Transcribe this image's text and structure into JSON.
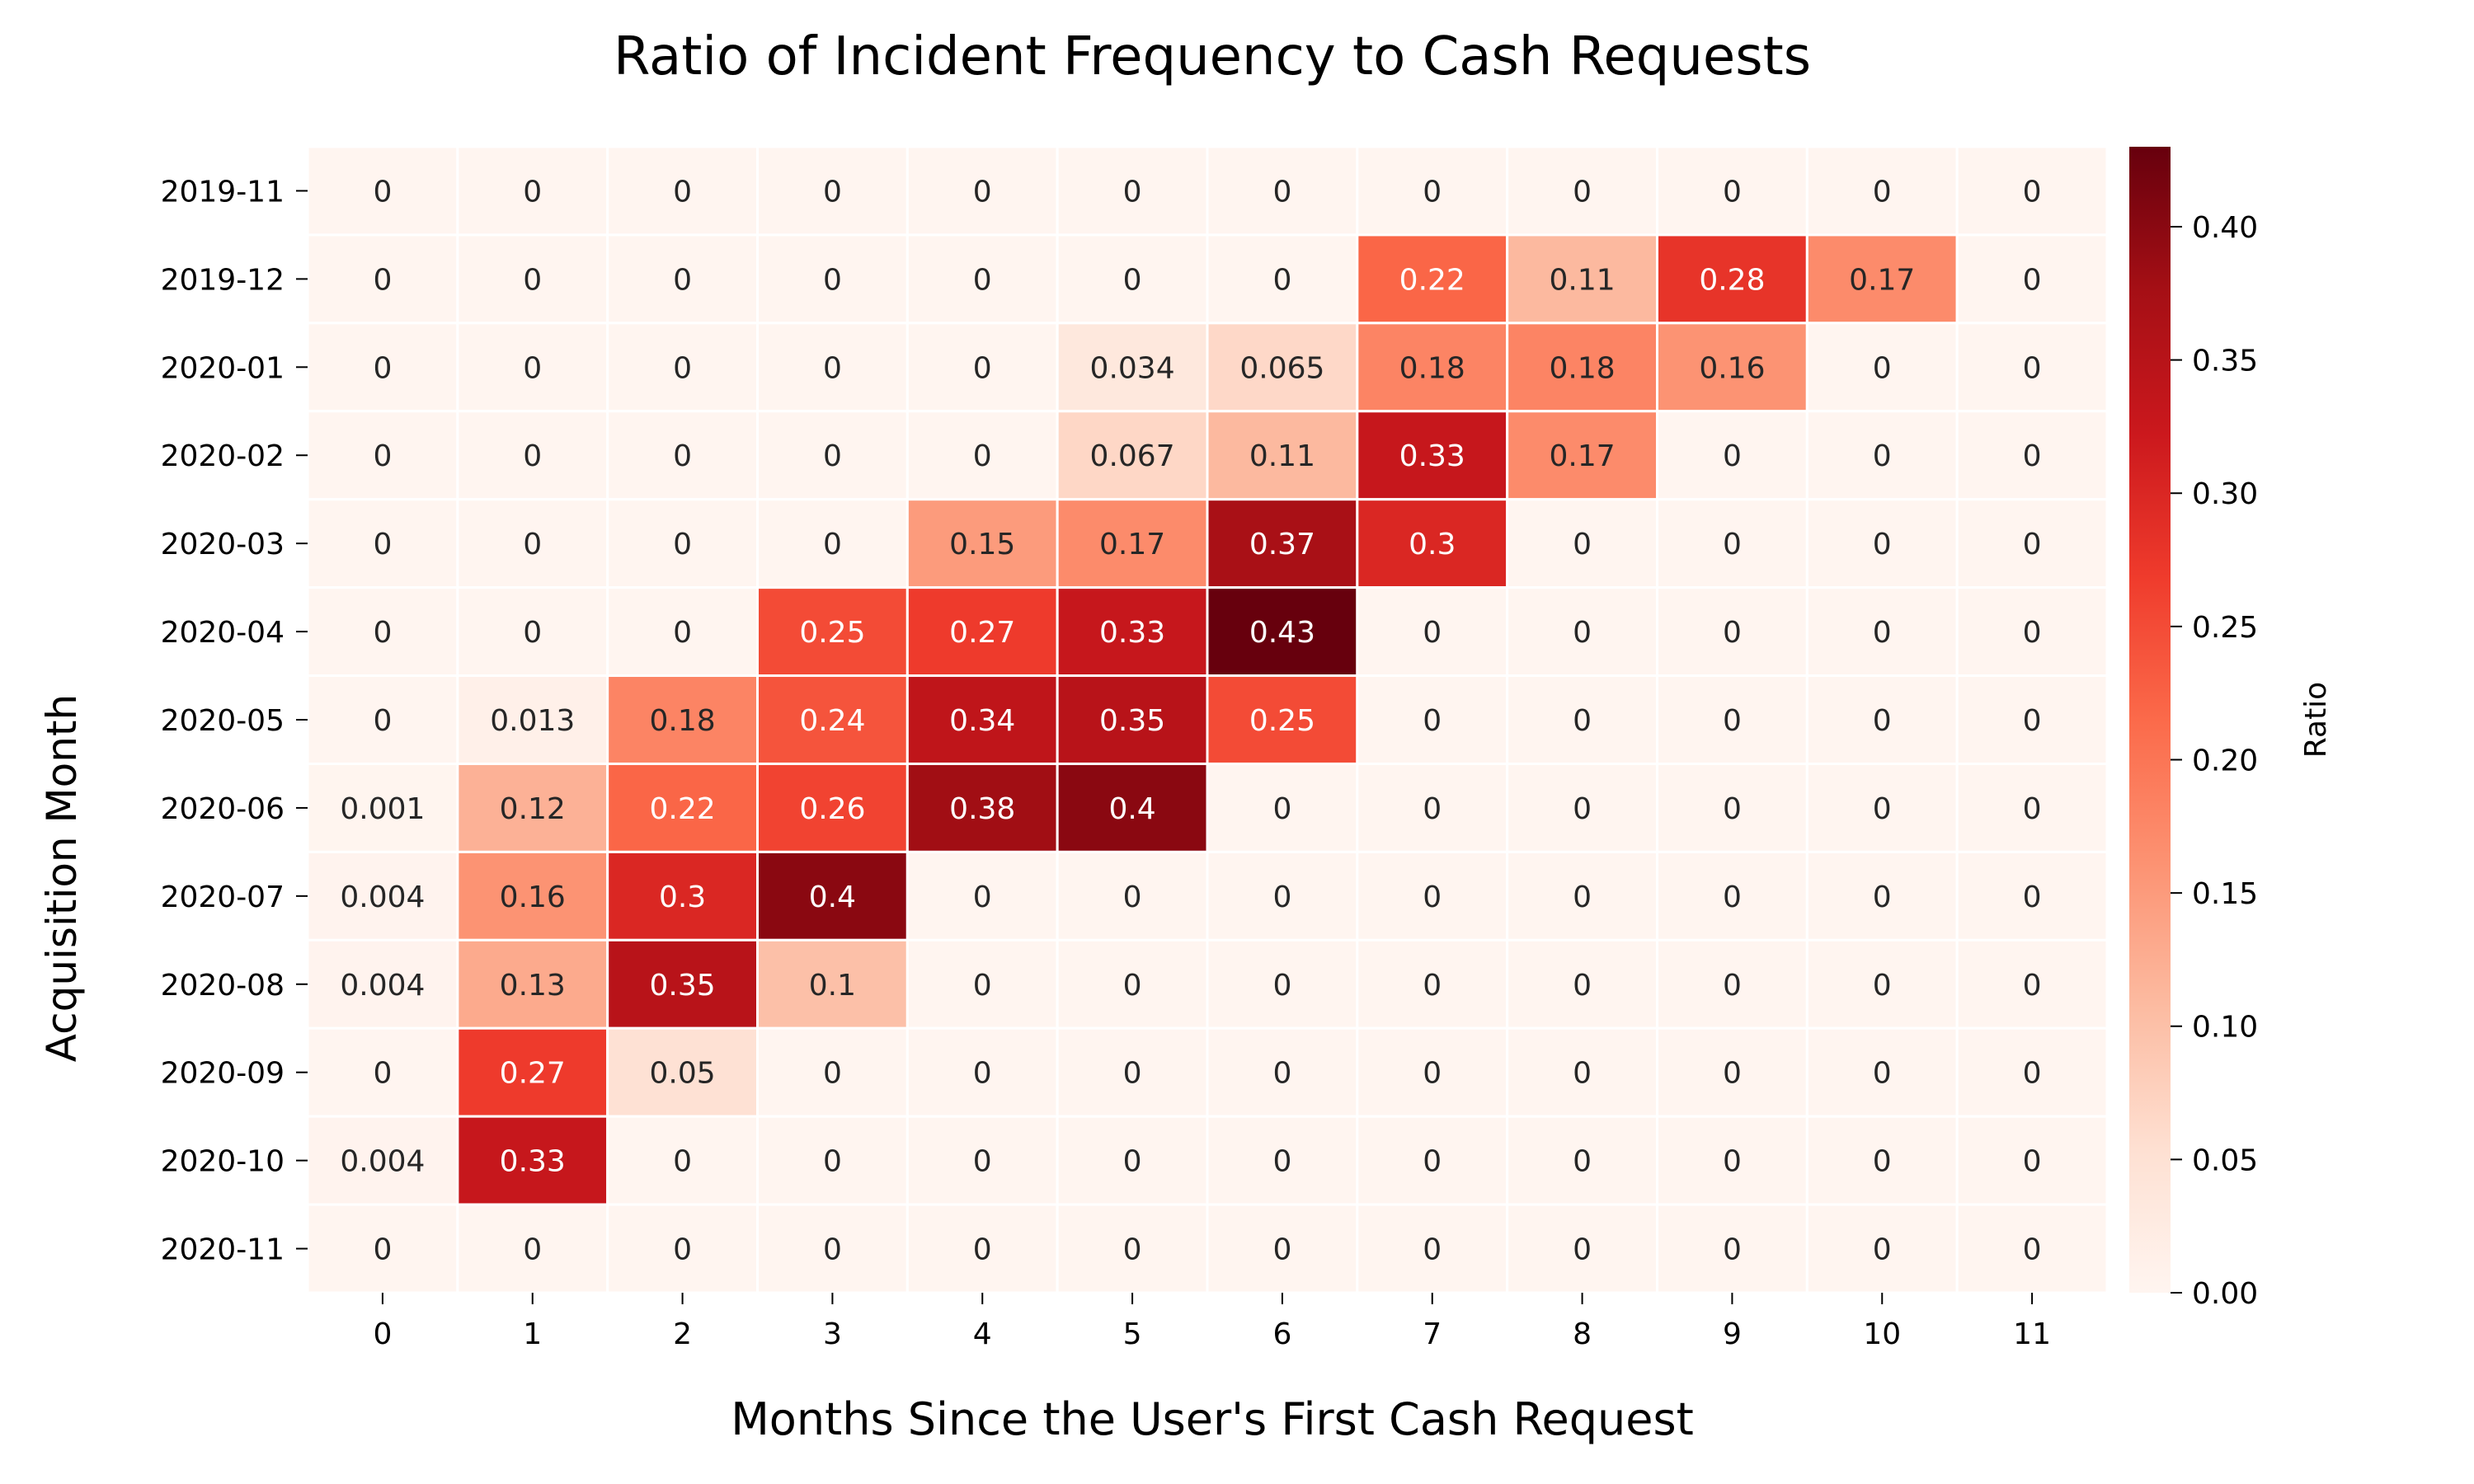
{
  "chart_data": {
    "type": "heatmap",
    "title": "Ratio of Incident Frequency to Cash Requests",
    "xlabel": "Months Since the User's First Cash Request",
    "ylabel": "Acquisition Month",
    "colorbar_label": "Ratio",
    "x_categories": [
      "0",
      "1",
      "2",
      "3",
      "4",
      "5",
      "6",
      "7",
      "8",
      "9",
      "10",
      "11"
    ],
    "y_categories": [
      "2019-11",
      "2019-12",
      "2020-01",
      "2020-02",
      "2020-03",
      "2020-04",
      "2020-05",
      "2020-06",
      "2020-07",
      "2020-08",
      "2020-09",
      "2020-10",
      "2020-11"
    ],
    "colorbar_ticks": [
      "0.00",
      "0.05",
      "0.10",
      "0.15",
      "0.20",
      "0.25",
      "0.30",
      "0.35",
      "0.40"
    ],
    "color_range": [
      0,
      0.43
    ],
    "colormap": "Reds",
    "cell_labels": [
      [
        "0",
        "0",
        "0",
        "0",
        "0",
        "0",
        "0",
        "0",
        "0",
        "0",
        "0",
        "0"
      ],
      [
        "0",
        "0",
        "0",
        "0",
        "0",
        "0",
        "0",
        "0.22",
        "0.11",
        "0.28",
        "0.17",
        "0"
      ],
      [
        "0",
        "0",
        "0",
        "0",
        "0",
        "0.034",
        "0.065",
        "0.18",
        "0.18",
        "0.16",
        "0",
        "0"
      ],
      [
        "0",
        "0",
        "0",
        "0",
        "0",
        "0.067",
        "0.11",
        "0.33",
        "0.17",
        "0",
        "0",
        "0"
      ],
      [
        "0",
        "0",
        "0",
        "0",
        "0.15",
        "0.17",
        "0.37",
        "0.3",
        "0",
        "0",
        "0",
        "0"
      ],
      [
        "0",
        "0",
        "0",
        "0.25",
        "0.27",
        "0.33",
        "0.43",
        "0",
        "0",
        "0",
        "0",
        "0"
      ],
      [
        "0",
        "0.013",
        "0.18",
        "0.24",
        "0.34",
        "0.35",
        "0.25",
        "0",
        "0",
        "0",
        "0",
        "0"
      ],
      [
        "0.001",
        "0.12",
        "0.22",
        "0.26",
        "0.38",
        "0.4",
        "0",
        "0",
        "0",
        "0",
        "0",
        "0"
      ],
      [
        "0.004",
        "0.16",
        "0.3",
        "0.4",
        "0",
        "0",
        "0",
        "0",
        "0",
        "0",
        "0",
        "0"
      ],
      [
        "0.004",
        "0.13",
        "0.35",
        "0.1",
        "0",
        "0",
        "0",
        "0",
        "0",
        "0",
        "0",
        "0"
      ],
      [
        "0",
        "0.27",
        "0.05",
        "0",
        "0",
        "0",
        "0",
        "0",
        "0",
        "0",
        "0",
        "0"
      ],
      [
        "0.004",
        "0.33",
        "0",
        "0",
        "0",
        "0",
        "0",
        "0",
        "0",
        "0",
        "0",
        "0"
      ],
      [
        "0",
        "0",
        "0",
        "0",
        "0",
        "0",
        "0",
        "0",
        "0",
        "0",
        "0",
        "0"
      ]
    ]
  }
}
